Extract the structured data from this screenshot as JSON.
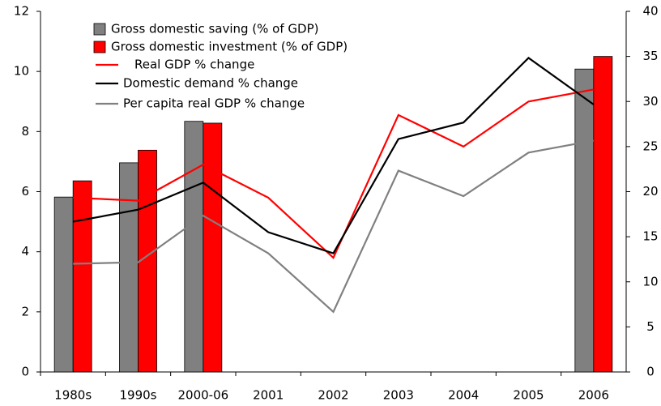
{
  "chart_data": {
    "type": "bar",
    "categories": [
      "1980s",
      "1990s",
      "2000-06",
      "2001",
      "2002",
      "2003",
      "2004",
      "2005",
      "2006"
    ],
    "series": [
      {
        "name": "Gross domestic saving (% of GDP)",
        "type": "bar",
        "axis": "y2",
        "color": "#808080",
        "values": [
          19.4,
          23.2,
          27.8,
          null,
          null,
          null,
          null,
          null,
          33.6
        ]
      },
      {
        "name": "Gross domestic investment (% of GDP)",
        "type": "bar",
        "axis": "y2",
        "color": "#ff0000",
        "values": [
          21.2,
          24.6,
          27.6,
          null,
          null,
          null,
          null,
          null,
          35.0
        ]
      },
      {
        "name": "Real GDP % change",
        "type": "line",
        "color": "#ff0000",
        "values": [
          5.8,
          5.7,
          6.9,
          5.8,
          3.8,
          8.55,
          7.5,
          9.0,
          9.4
        ]
      },
      {
        "name": "Domestic demand % change",
        "type": "line",
        "color": "#000000",
        "values": [
          5.0,
          5.4,
          6.3,
          4.65,
          3.95,
          7.75,
          8.3,
          10.45,
          8.9
        ]
      },
      {
        "name": "Per capita real GDP % change",
        "type": "line",
        "color": "#808080",
        "values": [
          3.6,
          3.65,
          5.2,
          3.95,
          2.0,
          6.7,
          5.85,
          7.3,
          7.7
        ]
      }
    ],
    "ylim": [
      0,
      12
    ],
    "yticks": [
      0,
      2,
      4,
      6,
      8,
      10,
      12
    ],
    "y2lim": [
      0,
      40
    ],
    "y2ticks": [
      0,
      5,
      10,
      15,
      20,
      25,
      30,
      35,
      40
    ],
    "grid": false
  }
}
